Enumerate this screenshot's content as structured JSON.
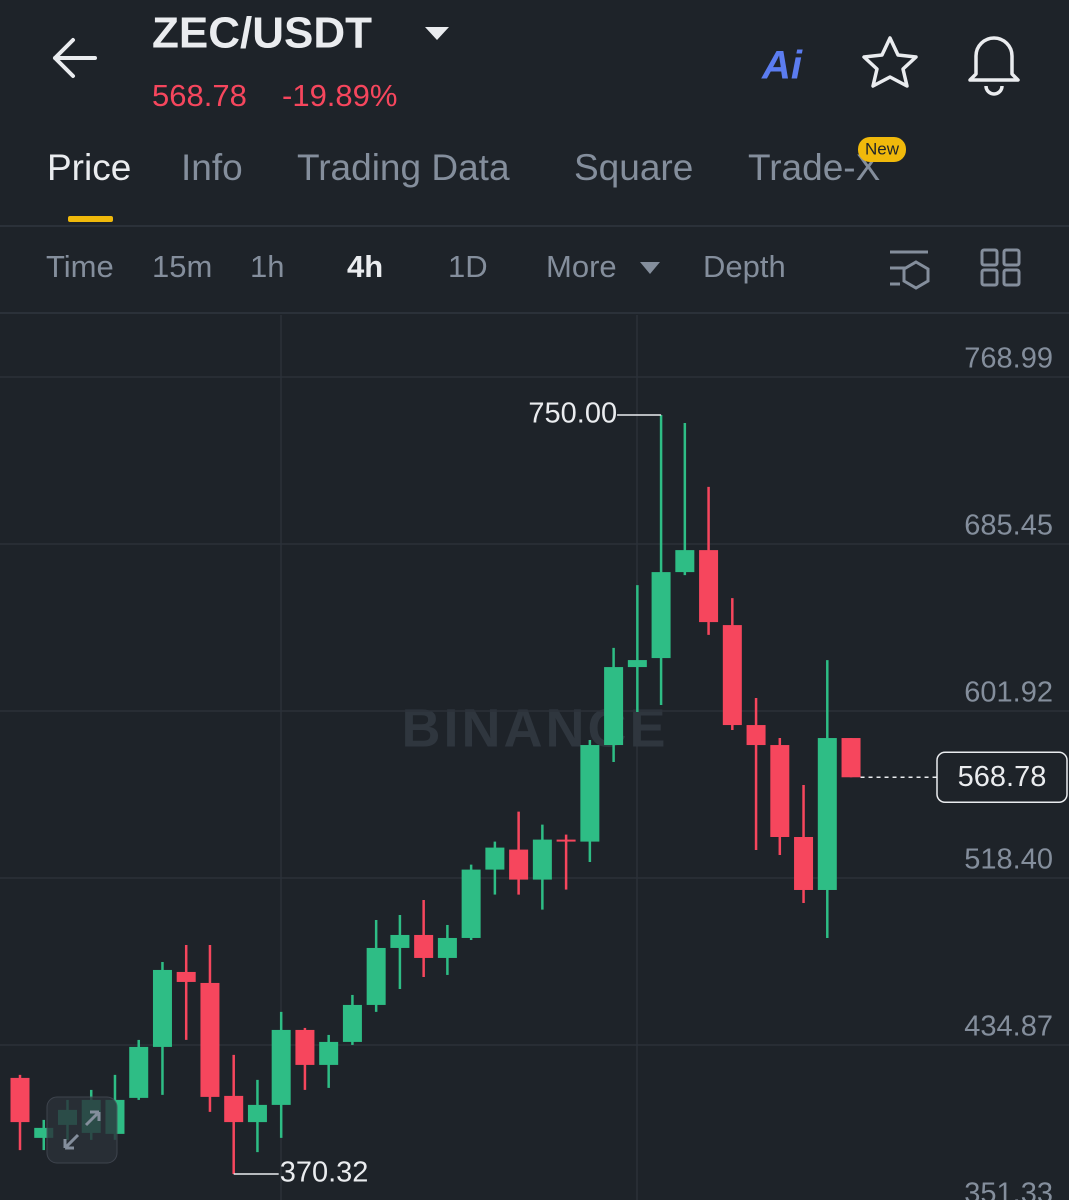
{
  "header": {
    "pair": "ZEC/USDT",
    "price": "568.78",
    "change": "-19.89%",
    "ai": "Ai"
  },
  "tabs": [
    "Price",
    "Info",
    "Trading Data",
    "Square",
    "Trade-X"
  ],
  "badge": "New",
  "toolbar": [
    "Time",
    "15m",
    "1h",
    "4h",
    "1D",
    "More",
    "Depth"
  ],
  "watermark": "BINANCE",
  "chart_data": {
    "type": "candlestick",
    "up_color": "#2ebd85",
    "down_color": "#f6465d",
    "open": [
      418.4,
      388.4,
      394.9,
      390.9,
      390.4,
      408.4,
      433.9,
      471.4,
      465.9,
      409.4,
      396.3,
      404.9,
      442.4,
      424.9,
      436.4,
      454.9,
      483.4,
      489.9,
      478.4,
      488.4,
      522.6,
      532.6,
      517.6,
      537.6,
      536.6,
      584.9,
      623.9,
      628.4,
      671.4,
      682.4,
      644.9,
      594.9,
      584.9,
      538.9,
      512.4,
      588.4
    ],
    "high": [
      419.9,
      397.4,
      407.4,
      412.4,
      419.9,
      437.4,
      476.4,
      484.9,
      484.9,
      429.9,
      417.4,
      451.4,
      443.4,
      439.9,
      459.9,
      497.4,
      499.9,
      507.4,
      494.9,
      525.1,
      536.6,
      551.6,
      545.1,
      540.1,
      587.4,
      633.5,
      664.9,
      750,
      746.0,
      714.0,
      658.4,
      608.4,
      588.4,
      564.9,
      627.4,
      588.4
    ],
    "low": [
      382.3,
      382.3,
      387.4,
      387.4,
      387.4,
      407.4,
      409.9,
      437.4,
      401.4,
      370.32,
      381.3,
      388.4,
      412.4,
      413.4,
      434.9,
      451.4,
      462.9,
      468.9,
      469.9,
      487.4,
      510.1,
      510.1,
      502.6,
      512.6,
      526.4,
      576.4,
      601.4,
      604.9,
      669.9,
      640.0,
      592.4,
      532.4,
      529.9,
      505.9,
      488.4,
      568.78
    ],
    "close": [
      396.3,
      393.4,
      402.4,
      407.4,
      407.4,
      433.9,
      472.4,
      466.4,
      408.9,
      396.3,
      404.9,
      442.4,
      424.9,
      436.4,
      454.9,
      483.4,
      489.9,
      478.4,
      488.4,
      522.6,
      533.6,
      517.6,
      537.6,
      536.6,
      584.9,
      623.9,
      627.4,
      671.4,
      682.4,
      646.4,
      594.9,
      584.9,
      538.9,
      512.4,
      588.4,
      568.78
    ],
    "high_label": "750.00",
    "low_label": "370.32",
    "last_label": "568.78",
    "ylim": [
      351.33,
      800.0
    ],
    "yticks": [
      {
        "value": 768.99,
        "label": "768.99"
      },
      {
        "value": 685.45,
        "label": "685.45"
      },
      {
        "value": 601.92,
        "label": "601.92"
      },
      {
        "value": 518.4,
        "label": "518.40"
      },
      {
        "value": 434.87,
        "label": "434.87"
      },
      {
        "value": 351.33,
        "label": "351.33"
      }
    ],
    "grid": true
  }
}
